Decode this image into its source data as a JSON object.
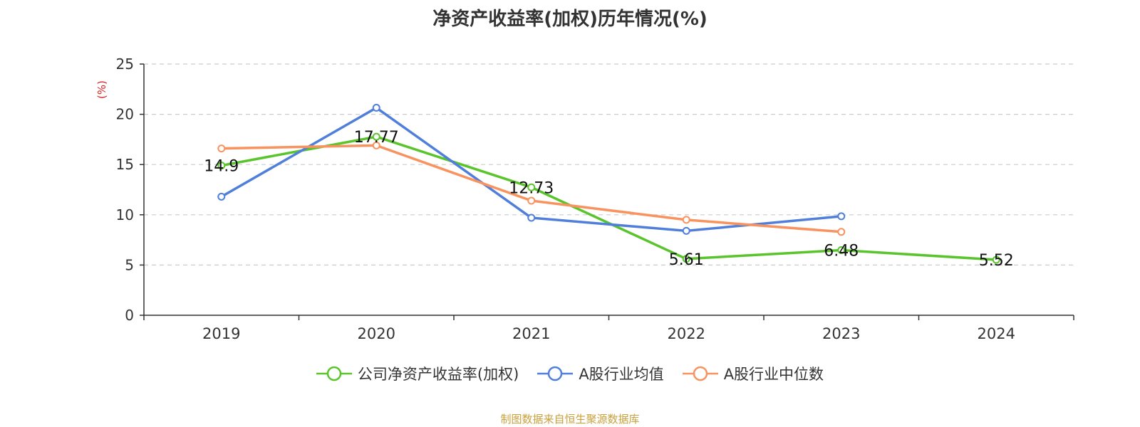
{
  "title": "净资产收益率(加权)历年情况(%)",
  "source_note": "制图数据来自恒生聚源数据库",
  "chart_data": {
    "type": "line",
    "title": "净资产收益率(加权)历年情况(%)",
    "ylabel": "(%)",
    "ylim": [
      0,
      25
    ],
    "yticks": [
      0,
      5,
      10,
      15,
      20,
      25
    ],
    "categories": [
      "2019",
      "2020",
      "2021",
      "2022",
      "2023",
      "2024"
    ],
    "grid": true,
    "legend_position": "bottom",
    "series": [
      {
        "name": "公司净资产收益率(加权)",
        "color": "#5ac42d",
        "values": [
          14.9,
          17.77,
          12.73,
          5.61,
          6.48,
          5.52
        ],
        "labels": [
          "14.9",
          "17.77",
          "12.73",
          "5.61",
          "6.48",
          "5.52"
        ]
      },
      {
        "name": "A股行业均值",
        "color": "#4f7fdb",
        "values": [
          11.8,
          20.65,
          9.7,
          8.4,
          9.85,
          null
        ]
      },
      {
        "name": "A股行业中位数",
        "color": "#f8935f",
        "values": [
          16.6,
          16.9,
          11.4,
          9.5,
          8.3,
          null
        ]
      }
    ]
  }
}
